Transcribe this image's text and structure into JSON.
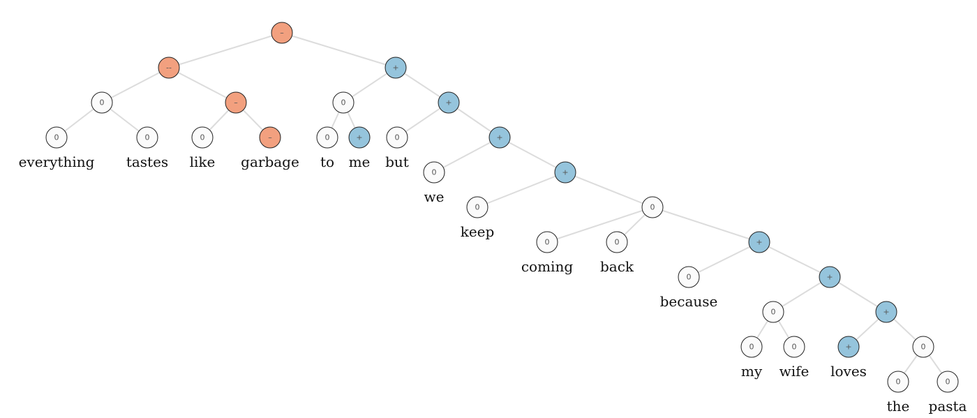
{
  "colors": {
    "negative": "#f2a07f",
    "positive": "#95c4dc",
    "neutral": "#fbfbfb",
    "edge": "#dcdcdc"
  },
  "tree": {
    "nodes": [
      {
        "id": "n1",
        "sentiment": "negative",
        "label": "–"
      },
      {
        "id": "n2",
        "sentiment": "negative",
        "label": "--"
      },
      {
        "id": "n3",
        "sentiment": "positive",
        "label": "+"
      },
      {
        "id": "n4",
        "sentiment": "neutral",
        "label": "0"
      },
      {
        "id": "n5",
        "sentiment": "negative",
        "label": "–"
      },
      {
        "id": "n6",
        "sentiment": "neutral",
        "label": "0",
        "word": "everything"
      },
      {
        "id": "n7",
        "sentiment": "neutral",
        "label": "0",
        "word": "tastes"
      },
      {
        "id": "n8",
        "sentiment": "neutral",
        "label": "0",
        "word": "like"
      },
      {
        "id": "n9",
        "sentiment": "negative",
        "label": "–",
        "word": "garbage"
      },
      {
        "id": "n10",
        "sentiment": "neutral",
        "label": "0"
      },
      {
        "id": "n11",
        "sentiment": "positive",
        "label": "+"
      },
      {
        "id": "n12",
        "sentiment": "neutral",
        "label": "0",
        "word": "to"
      },
      {
        "id": "n13",
        "sentiment": "positive",
        "label": "+",
        "word": "me"
      },
      {
        "id": "n14",
        "sentiment": "neutral",
        "label": "0",
        "word": "but"
      },
      {
        "id": "n15",
        "sentiment": "positive",
        "label": "+"
      },
      {
        "id": "n16",
        "sentiment": "neutral",
        "label": "0",
        "word": "we"
      },
      {
        "id": "n17",
        "sentiment": "positive",
        "label": "+"
      },
      {
        "id": "n18",
        "sentiment": "neutral",
        "label": "0",
        "word": "keep"
      },
      {
        "id": "n19",
        "sentiment": "positive",
        "label": "+"
      },
      {
        "id": "n20",
        "sentiment": "neutral",
        "label": "0",
        "word": "coming"
      },
      {
        "id": "n21",
        "sentiment": "neutral",
        "label": "0",
        "word": "back"
      },
      {
        "id": "n22",
        "sentiment": "neutral",
        "label": "0"
      },
      {
        "id": "n23",
        "sentiment": "neutral",
        "label": "0",
        "word": "because"
      },
      {
        "id": "n24",
        "sentiment": "positive",
        "label": "+"
      },
      {
        "id": "n25",
        "sentiment": "neutral",
        "label": "0"
      },
      {
        "id": "n26",
        "sentiment": "positive",
        "label": "+"
      },
      {
        "id": "n27",
        "sentiment": "neutral",
        "label": "0",
        "word": "my"
      },
      {
        "id": "n28",
        "sentiment": "neutral",
        "label": "0",
        "word": "wife"
      },
      {
        "id": "n29",
        "sentiment": "positive",
        "label": "+",
        "word": "loves"
      },
      {
        "id": "n30",
        "sentiment": "neutral",
        "label": "0"
      },
      {
        "id": "n31",
        "sentiment": "neutral",
        "label": "0",
        "word": "the"
      },
      {
        "id": "n32",
        "sentiment": "neutral",
        "label": "0",
        "word": "pasta"
      }
    ],
    "edges": [
      [
        "n1",
        "n2"
      ],
      [
        "n1",
        "n3"
      ],
      [
        "n2",
        "n4"
      ],
      [
        "n2",
        "n5"
      ],
      [
        "n4",
        "n6"
      ],
      [
        "n4",
        "n7"
      ],
      [
        "n5",
        "n8"
      ],
      [
        "n5",
        "n9"
      ],
      [
        "n3",
        "n10"
      ],
      [
        "n3",
        "n15"
      ],
      [
        "n10",
        "n12"
      ],
      [
        "n10",
        "n13"
      ],
      [
        "n15",
        "n14"
      ],
      [
        "n15",
        "n17"
      ],
      [
        "n17",
        "n16"
      ],
      [
        "n17",
        "n19"
      ],
      [
        "n19",
        "n18"
      ],
      [
        "n19",
        "n22"
      ],
      [
        "n22",
        "n20"
      ],
      [
        "n22",
        "n21"
      ],
      [
        "n22",
        "n24"
      ],
      [
        "n24",
        "n23"
      ],
      [
        "n24",
        "n26"
      ],
      [
        "n26",
        "n25"
      ],
      [
        "n26",
        "n30"
      ],
      [
        "n25",
        "n27"
      ],
      [
        "n25",
        "n28"
      ],
      [
        "n30",
        "n29"
      ],
      [
        "n30",
        "n31"
      ],
      [
        "n30",
        "n32"
      ]
    ]
  }
}
